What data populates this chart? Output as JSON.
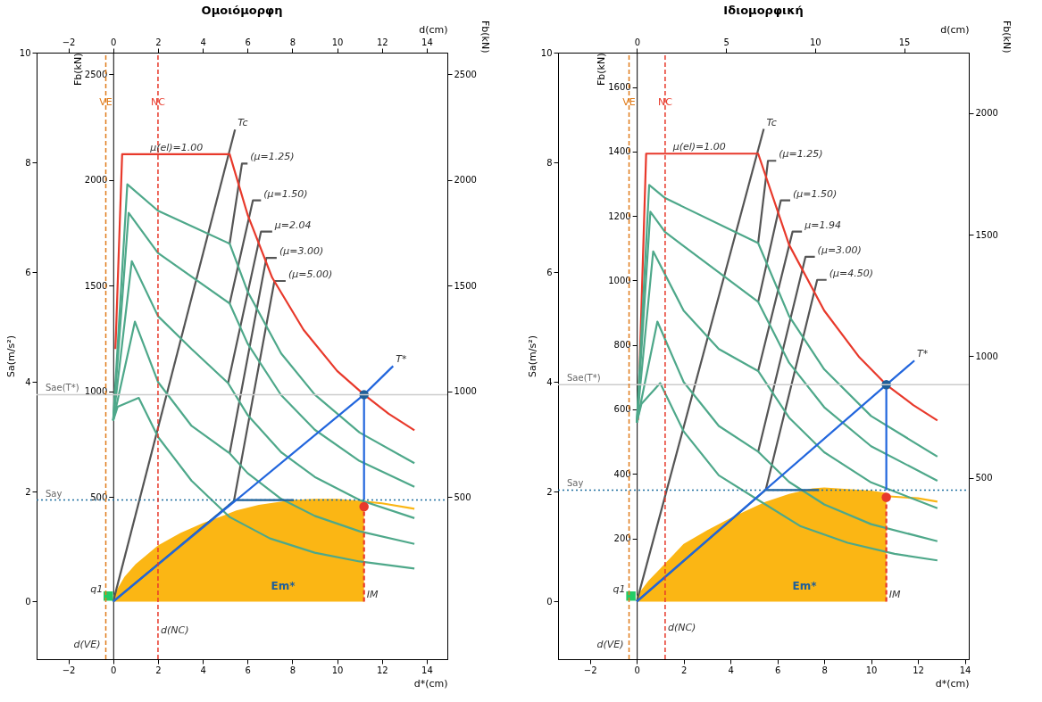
{
  "chart_data": [
    {
      "type": "line",
      "title": "Ομοιόμορφη",
      "xlabel": "d*(cm)",
      "ylabel": "Sa(m/s²)",
      "x2label": "d(cm)",
      "y2label": "Fb(kN)",
      "y3label": "Fb(kN)",
      "xlim": [
        -3.42,
        14.92
      ],
      "ylim": [
        -1.05,
        10
      ],
      "x2lim": [
        -3.42,
        14.92
      ],
      "y2lim": [
        -267,
        2602
      ],
      "y3lim": [
        -267,
        2602
      ],
      "xticks": [
        -2,
        0,
        2,
        4,
        6,
        8,
        10,
        12,
        14
      ],
      "yticks": [
        0,
        2,
        4,
        6,
        8,
        10
      ],
      "x2ticks": [
        -2,
        0,
        2,
        4,
        6,
        8,
        10,
        12,
        14
      ],
      "y2ticks": [
        500,
        1000,
        1500,
        2000,
        2500
      ],
      "y3ticks": [
        500,
        1000,
        1500,
        2000,
        2500
      ],
      "grid": false,
      "series": [
        {
          "type": "area",
          "color": "#fbb614",
          "x": [
            0,
            0.5,
            1,
            2,
            3,
            4,
            5,
            5.5,
            6.5,
            8,
            9,
            10,
            11.2
          ],
          "values": [
            0.1,
            0.45,
            0.68,
            1.02,
            1.25,
            1.43,
            1.58,
            1.66,
            1.76,
            1.85,
            1.87,
            1.87,
            1.83
          ]
        },
        {
          "color": "#fbb614",
          "x": [
            11.2,
            12,
            13.45
          ],
          "values": [
            1.82,
            1.79,
            1.69
          ]
        },
        {
          "color": "#555555",
          "x": [
            0,
            5.44
          ],
          "values": [
            0,
            8.6
          ]
        },
        {
          "color": "#555555",
          "x": [
            5.2,
            5.75,
            6.0
          ],
          "values": [
            6.52,
            7.98,
            7.98
          ]
        },
        {
          "color": "#555555",
          "x": [
            5.2,
            6.24,
            6.6
          ],
          "values": [
            5.43,
            7.31,
            7.31
          ]
        },
        {
          "color": "#555555",
          "x": [
            5.13,
            6.6,
            7.1
          ],
          "values": [
            3.98,
            6.74,
            6.74
          ]
        },
        {
          "color": "#555555",
          "x": [
            5.2,
            6.84,
            7.3
          ],
          "values": [
            2.7,
            6.26,
            6.26
          ]
        },
        {
          "color": "#555555",
          "x": [
            5.4,
            7.2,
            7.7
          ],
          "values": [
            1.85,
            5.84,
            5.84
          ]
        },
        {
          "color": "#e8392b",
          "x": [
            0.1,
            0.4,
            5.2,
            6,
            7.1,
            8.5,
            10,
            11.2,
            12.3,
            13.45
          ],
          "values": [
            4.6,
            8.15,
            8.15,
            7.05,
            5.9,
            4.95,
            4.2,
            3.77,
            3.42,
            3.12
          ]
        },
        {
          "color": "#4ea88a",
          "x": [
            0,
            0.63,
            2,
            5.2,
            6,
            7.5,
            9,
            11,
            13.45
          ],
          "values": [
            3.3,
            7.6,
            7.12,
            6.52,
            5.65,
            4.52,
            3.77,
            3.08,
            2.52
          ]
        },
        {
          "color": "#4ea88a",
          "x": [
            0,
            0.69,
            2,
            5.2,
            6,
            7.5,
            9,
            11,
            13.45
          ],
          "values": [
            3.3,
            7.08,
            6.35,
            5.43,
            4.7,
            3.76,
            3.13,
            2.56,
            2.09
          ]
        },
        {
          "color": "#4ea88a",
          "x": [
            0,
            0.83,
            2,
            3.5,
            5.13,
            6,
            7.5,
            9,
            11,
            13.45
          ],
          "values": [
            3.3,
            6.2,
            5.2,
            4.6,
            3.98,
            3.4,
            2.72,
            2.27,
            1.85,
            1.52
          ]
        },
        {
          "color": "#4ea88a",
          "x": [
            0,
            0.97,
            2,
            3.5,
            5.2,
            6,
            7.5,
            9,
            11,
            13.45
          ],
          "values": [
            3.3,
            5.1,
            4.0,
            3.2,
            2.7,
            2.34,
            1.87,
            1.56,
            1.28,
            1.05
          ]
        },
        {
          "color": "#4ea88a",
          "x": [
            0,
            0.2,
            1.14,
            2,
            3.5,
            5.2,
            7,
            9,
            11,
            13.45
          ],
          "values": [
            3.3,
            3.55,
            3.71,
            3.0,
            2.2,
            1.54,
            1.15,
            0.89,
            0.73,
            0.6
          ]
        },
        {
          "color": "#1f5f99",
          "x": [
            0,
            5.44,
            8.07
          ],
          "values": [
            0,
            1.85,
            1.85
          ]
        },
        {
          "color": "#2266dd",
          "x": [
            0,
            11.2,
            12.5
          ],
          "values": [
            0,
            3.77,
            4.29
          ]
        },
        {
          "color": "#2266dd",
          "x": [
            11.2,
            11.2
          ],
          "values": [
            3.77,
            1.85
          ]
        },
        {
          "color": "#e8392b",
          "line_style": "dashed",
          "x": [
            11.2,
            11.2
          ],
          "values": [
            0,
            1.73
          ]
        },
        {
          "type": "scatter",
          "color": "#1f5f99",
          "marker": "circle",
          "x": [
            11.2
          ],
          "values": [
            3.77
          ]
        },
        {
          "type": "scatter",
          "color": "#e8392b",
          "marker": "circle",
          "x": [
            11.2
          ],
          "values": [
            1.73
          ]
        },
        {
          "type": "scatter",
          "color": "#22cc66",
          "marker": "square",
          "x": [
            -0.22
          ],
          "values": [
            0.1
          ]
        }
      ],
      "ref_lines": [
        {
          "axis": "y",
          "value": 3.77,
          "label": "Sae(T*)",
          "color": "#cccccc"
        },
        {
          "axis": "y",
          "value": 1.85,
          "label": "Say",
          "color": "#1f6fa0",
          "line_style": "dotted"
        },
        {
          "axis": "x",
          "value": 2,
          "label": "NC",
          "color": "#e8392b",
          "line_style": "dashed"
        },
        {
          "axis": "x",
          "value": -0.33,
          "label": "VE",
          "color": "#e07b1a",
          "line_style": "dashed"
        }
      ],
      "annotations": [
        {
          "text": "μ(el)=1.00",
          "x": 1.53,
          "y": 8.15
        },
        {
          "text": "Tc",
          "x": 5.44,
          "y": 8.6
        },
        {
          "text": "(μ=1.25)",
          "x": 6.0,
          "y": 7.98
        },
        {
          "text": "(μ=1.50)",
          "x": 6.6,
          "y": 7.31
        },
        {
          "text": "μ=2.04",
          "x": 7.1,
          "y": 6.74
        },
        {
          "text": "(μ=3.00)",
          "x": 7.3,
          "y": 6.26
        },
        {
          "text": "(μ=5.00)",
          "x": 7.7,
          "y": 5.84
        },
        {
          "text": "T*",
          "x": 12.5,
          "y": 4.29
        },
        "Em*",
        {
          "text": "IM",
          "x": 11.2,
          "y": 0
        },
        {
          "text": "d(NC)",
          "x": 2,
          "y": -0.64
        },
        {
          "text": "d(VE)",
          "x": -0.33,
          "y": -0.9
        },
        {
          "text": "q1",
          "x": -0.22,
          "y": 0.1
        }
      ]
    },
    {
      "type": "line",
      "title": "Ιδιομορφική",
      "xlabel": "d*(cm)",
      "ylabel": "Sa(m/s²)",
      "x2label": "d(cm)",
      "y2label": "Fb(kN)",
      "y3label": "Fb(kN)",
      "xlim": [
        -3.36,
        14.17
      ],
      "ylim": [
        -1.05,
        10
      ],
      "x2lim": [
        -4.43,
        18.63
      ],
      "y2lim": [
        -245,
        2248
      ],
      "y3lim": [
        -175,
        1707
      ],
      "xticks": [
        -2,
        0,
        2,
        4,
        6,
        8,
        10,
        12,
        14
      ],
      "yticks": [
        0,
        2,
        4,
        6,
        8,
        10
      ],
      "x2ticks": [
        0,
        5,
        10,
        15
      ],
      "y2ticks": [
        500,
        1000,
        1500,
        2000
      ],
      "y3ticks": [
        200,
        400,
        600,
        800,
        1000,
        1200,
        1400,
        1600
      ],
      "grid": false,
      "series": [
        {
          "type": "area",
          "color": "#fbb614",
          "x": [
            0,
            0.5,
            1,
            2,
            3,
            4,
            5,
            5.5,
            6.5,
            7.5,
            8,
            9,
            10,
            10.65
          ],
          "values": [
            0.1,
            0.38,
            0.6,
            1.05,
            1.3,
            1.52,
            1.72,
            1.82,
            1.96,
            2.06,
            2.08,
            2.05,
            2.02,
            1.98
          ]
        },
        {
          "color": "#fbb614",
          "x": [
            10.65,
            12,
            12.83
          ],
          "values": [
            1.92,
            1.88,
            1.82
          ]
        },
        {
          "color": "#555555",
          "x": [
            0,
            5.42
          ],
          "values": [
            0,
            8.61
          ]
        },
        {
          "color": "#555555",
          "x": [
            5.18,
            5.6,
            5.95
          ],
          "values": [
            6.53,
            8.03,
            8.03
          ]
        },
        {
          "color": "#555555",
          "x": [
            5.18,
            6.15,
            6.55
          ],
          "values": [
            5.46,
            7.31,
            7.31
          ]
        },
        {
          "color": "#555555",
          "x": [
            5.18,
            6.65,
            7.05
          ],
          "values": [
            4.2,
            6.74,
            6.74
          ]
        },
        {
          "color": "#555555",
          "x": [
            5.18,
            7.2,
            7.6
          ],
          "values": [
            2.73,
            6.28,
            6.28
          ]
        },
        {
          "color": "#555555",
          "x": [
            5.5,
            7.7,
            8.1
          ],
          "values": [
            2.03,
            5.86,
            5.86
          ]
        },
        {
          "color": "#e8392b",
          "x": [
            0.05,
            0.4,
            5.18,
            6.5,
            8,
            9.5,
            10.65,
            11.8,
            12.83
          ],
          "values": [
            3.3,
            8.16,
            8.16,
            6.5,
            5.3,
            4.45,
            3.95,
            3.58,
            3.3
          ]
        },
        {
          "color": "#4ea88a",
          "x": [
            0,
            0.53,
            1.21,
            5.18,
            6.5,
            8,
            10,
            12.83
          ],
          "values": [
            3.26,
            7.59,
            7.35,
            6.53,
            5.2,
            4.23,
            3.38,
            2.64
          ]
        },
        {
          "color": "#4ea88a",
          "x": [
            0,
            0.58,
            1.21,
            5.18,
            6.5,
            8,
            10,
            12.83
          ],
          "values": [
            3.26,
            7.1,
            6.73,
            5.46,
            4.35,
            3.54,
            2.83,
            2.2
          ]
        },
        {
          "color": "#4ea88a",
          "x": [
            0,
            0.7,
            2,
            3.5,
            5.18,
            6.5,
            8,
            10,
            12.83
          ],
          "values": [
            3.26,
            6.38,
            5.3,
            4.6,
            4.2,
            3.35,
            2.72,
            2.17,
            1.7
          ]
        },
        {
          "color": "#4ea88a",
          "x": [
            0,
            0.88,
            2,
            3.5,
            5.18,
            6.5,
            8,
            10,
            12.83
          ],
          "values": [
            3.26,
            5.1,
            4.0,
            3.2,
            2.73,
            2.18,
            1.77,
            1.41,
            1.1
          ]
        },
        {
          "color": "#4ea88a",
          "x": [
            0,
            0.2,
            1.0,
            2,
            3.5,
            5.18,
            7,
            9,
            11,
            12.83
          ],
          "values": [
            3.26,
            3.6,
            3.98,
            3.1,
            2.3,
            1.85,
            1.37,
            1.07,
            0.87,
            0.75
          ]
        },
        {
          "color": "#1f5f99",
          "x": [
            0,
            5.49,
            7.78
          ],
          "values": [
            0,
            2.03,
            2.03
          ]
        },
        {
          "color": "#2266dd",
          "x": [
            0,
            10.65,
            11.85
          ],
          "values": [
            0,
            3.95,
            4.39
          ]
        },
        {
          "color": "#2266dd",
          "x": [
            10.65,
            10.65
          ],
          "values": [
            3.95,
            2.03
          ]
        },
        {
          "color": "#e8392b",
          "line_style": "dashed",
          "x": [
            10.65,
            10.65
          ],
          "values": [
            0,
            1.9
          ]
        },
        {
          "type": "scatter",
          "color": "#1f5f99",
          "marker": "circle",
          "x": [
            10.65
          ],
          "values": [
            3.95
          ]
        },
        {
          "type": "scatter",
          "color": "#e8392b",
          "marker": "circle",
          "x": [
            10.65
          ],
          "values": [
            1.9
          ]
        },
        {
          "type": "scatter",
          "color": "#22cc66",
          "marker": "square",
          "x": [
            -0.25
          ],
          "values": [
            0.1
          ]
        }
      ],
      "ref_lines": [
        {
          "axis": "y",
          "value": 3.95,
          "label": "Sae(T*)",
          "color": "#cccccc"
        },
        {
          "axis": "y",
          "value": 2.03,
          "label": "Say",
          "color": "#1f6fa0",
          "line_style": "dotted"
        },
        {
          "axis": "x",
          "value": 1.21,
          "label": "NC",
          "color": "#e8392b",
          "line_style": "dashed"
        },
        {
          "axis": "x",
          "value": -0.33,
          "label": "VE",
          "color": "#e07b1a",
          "line_style": "dashed"
        }
      ],
      "annotations": [
        {
          "text": "μ(el)=1.00",
          "x": 1.43,
          "y": 8.16
        },
        {
          "text": "Tc",
          "x": 5.42,
          "y": 8.61
        },
        {
          "text": "(μ=1.25)",
          "x": 5.95,
          "y": 8.03
        },
        {
          "text": "(μ=1.50)",
          "x": 6.55,
          "y": 7.31
        },
        {
          "text": "μ=1.94",
          "x": 7.05,
          "y": 6.74
        },
        {
          "text": "(μ=3.00)",
          "x": 7.6,
          "y": 6.28
        },
        {
          "text": "(μ=4.50)",
          "x": 8.1,
          "y": 5.86
        },
        {
          "text": "T*",
          "x": 11.85,
          "y": 4.39
        },
        "Em*",
        {
          "text": "IM",
          "x": 10.65,
          "y": 0
        },
        {
          "text": "d(NC)",
          "x": 1.21,
          "y": -0.6
        },
        {
          "text": "d(VE)",
          "x": -0.33,
          "y": -0.9
        },
        {
          "text": "q1",
          "x": -0.25,
          "y": 0.1
        }
      ]
    }
  ]
}
